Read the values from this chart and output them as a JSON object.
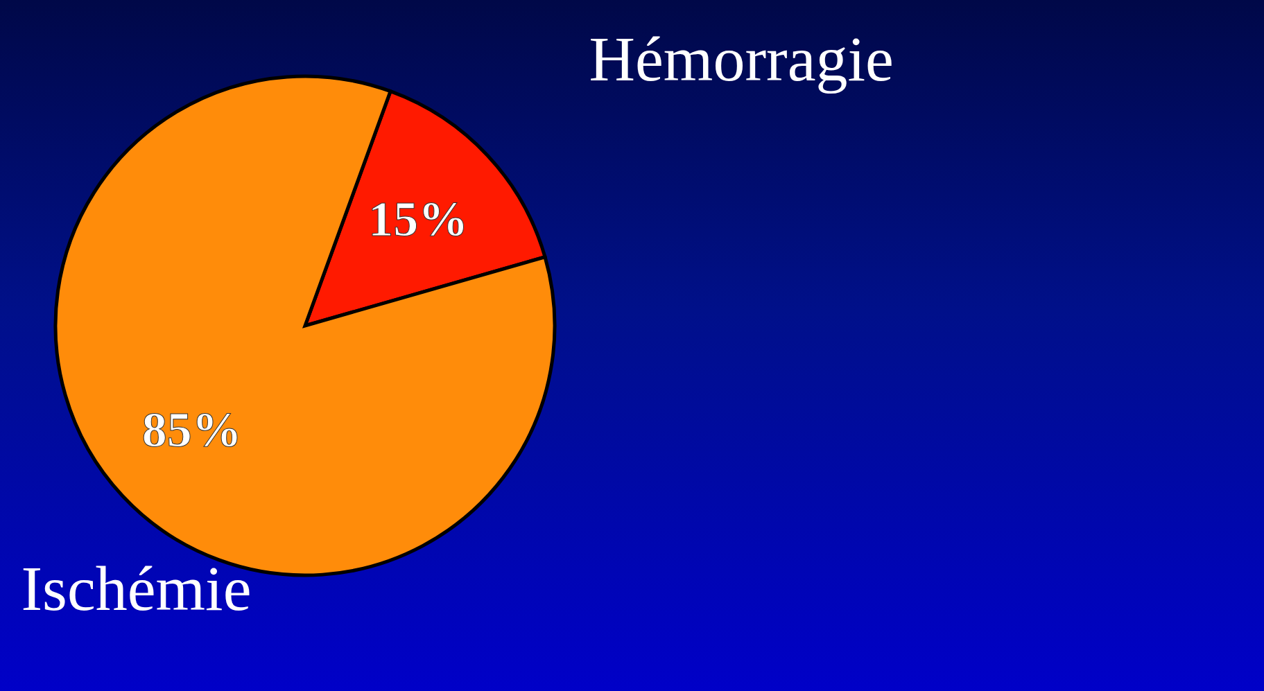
{
  "chart_data": {
    "type": "pie",
    "categories": [
      "Hémorragie",
      "Ischémie"
    ],
    "values": [
      15,
      85
    ],
    "colors": [
      "#ff1a00",
      "#ff8c0a"
    ],
    "value_labels": [
      "15%",
      "85%"
    ]
  }
}
